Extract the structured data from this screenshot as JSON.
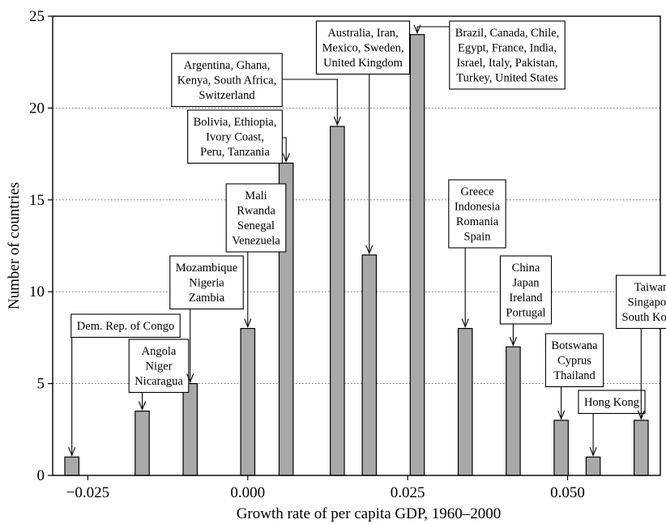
{
  "chart_data": {
    "type": "bar",
    "xlabel": "Growth rate of per capita GDP, 1960–2000",
    "ylabel": "Number of countries",
    "xlim": [
      -0.0305,
      0.0645
    ],
    "ylim": [
      0,
      25
    ],
    "x_ticks": [
      {
        "value": -0.025,
        "label": "−0.025"
      },
      {
        "value": 0.0,
        "label": "0.000"
      },
      {
        "value": 0.025,
        "label": "0.025"
      },
      {
        "value": 0.05,
        "label": "0.050"
      }
    ],
    "y_ticks": [
      {
        "value": 0,
        "label": "0"
      },
      {
        "value": 5,
        "label": "5"
      },
      {
        "value": 10,
        "label": "10"
      },
      {
        "value": 15,
        "label": "15"
      },
      {
        "value": 20,
        "label": "20"
      },
      {
        "value": 25,
        "label": "25"
      }
    ],
    "grid": "horizontal dotted",
    "bar_color": "#a9a9a9",
    "bar_width": 0.0022,
    "bars": [
      {
        "x": -0.0275,
        "value": 1
      },
      {
        "x": -0.0165,
        "value": 3.5
      },
      {
        "x": -0.009,
        "value": 5
      },
      {
        "x": 0.0,
        "value": 8
      },
      {
        "x": 0.006,
        "value": 17
      },
      {
        "x": 0.014,
        "value": 19
      },
      {
        "x": 0.019,
        "value": 12
      },
      {
        "x": 0.0265,
        "value": 24
      },
      {
        "x": 0.034,
        "value": 8
      },
      {
        "x": 0.0415,
        "value": 7
      },
      {
        "x": 0.049,
        "value": 3
      },
      {
        "x": 0.054,
        "value": 1
      },
      {
        "x": 0.0615,
        "value": 3
      }
    ],
    "annotations": [
      {
        "lines": [
          "Dem. Rep. of Congo"
        ],
        "bar": 0
      },
      {
        "lines": [
          "Angola",
          "Niger",
          "Nicaragua"
        ],
        "bar": 1
      },
      {
        "lines": [
          "Mozambique",
          "Nigeria",
          "Zambia"
        ],
        "bar": 2
      },
      {
        "lines": [
          "Mali",
          "Rwanda",
          "Senegal",
          "Venezuela"
        ],
        "bar": 3
      },
      {
        "lines": [
          "Bolivia, Ethiopia,",
          "Ivory Coast,",
          "Peru, Tanzania"
        ],
        "bar": 4
      },
      {
        "lines": [
          "Argentina, Ghana,",
          "Kenya, South Africa,",
          "Switzerland"
        ],
        "bar": 5
      },
      {
        "lines": [
          "Australia, Iran,",
          "Mexico, Sweden,",
          "United Kingdom"
        ],
        "bar": 6
      },
      {
        "lines": [
          "Brazil, Canada, Chile,",
          "Egypt, France, India,",
          "Israel, Italy, Pakistan,",
          "Turkey, United States"
        ],
        "bar": 7
      },
      {
        "lines": [
          "Greece",
          "Indonesia",
          "Romania",
          "Spain"
        ],
        "bar": 8
      },
      {
        "lines": [
          "China",
          "Japan",
          "Ireland",
          "Portugal"
        ],
        "bar": 9
      },
      {
        "lines": [
          "Botswana",
          "Cyprus",
          "Thailand"
        ],
        "bar": 10
      },
      {
        "lines": [
          "Hong Kong"
        ],
        "bar": 11
      },
      {
        "lines": [
          "Taiwan",
          "Singapore",
          "South Korea"
        ],
        "bar": 12
      }
    ]
  }
}
